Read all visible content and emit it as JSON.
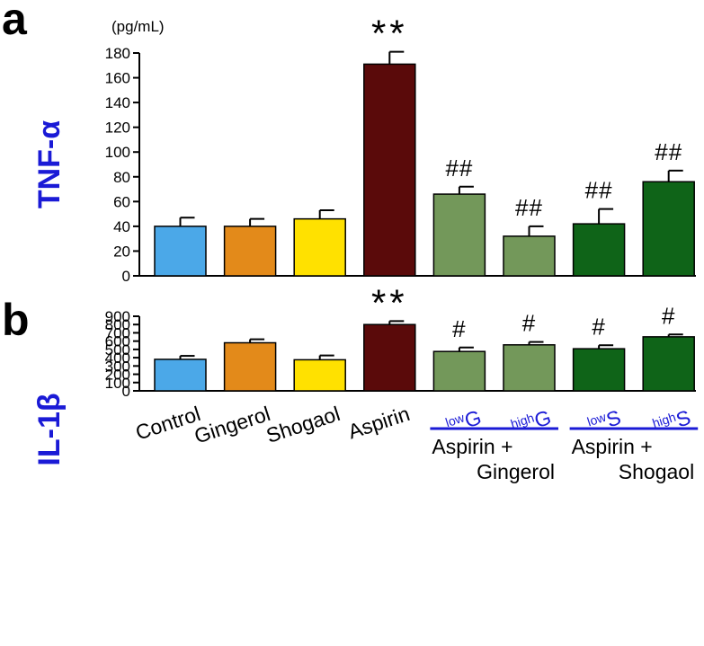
{
  "panels": [
    {
      "letter": "a",
      "unit": "(pg/mL)",
      "ylabel": "TNF-α",
      "ylim": [
        0,
        180
      ],
      "yticks": [
        0,
        20,
        40,
        60,
        80,
        100,
        120,
        140,
        160,
        180
      ],
      "values": [
        40,
        40,
        46,
        171,
        66,
        32,
        42,
        76
      ],
      "errors": [
        7,
        6,
        7,
        10,
        6,
        8,
        12,
        9
      ],
      "marks": [
        "",
        "",
        "",
        "**",
        "##",
        "##",
        "##",
        "##"
      ]
    },
    {
      "letter": "b",
      "unit": "",
      "ylabel": "IL-1β",
      "ylim": [
        0,
        900
      ],
      "yticks": [
        0,
        100,
        200,
        300,
        400,
        500,
        600,
        700,
        800,
        900
      ],
      "values": [
        380,
        580,
        375,
        800,
        475,
        555,
        508,
        652
      ],
      "errors": [
        42,
        42,
        52,
        42,
        48,
        35,
        42,
        28
      ],
      "marks": [
        "",
        "",
        "",
        "**",
        "#",
        "#",
        "#",
        "#"
      ]
    }
  ],
  "bar_colors": [
    "#4ba8e8",
    "#e38a1a",
    "#ffe100",
    "#5a0a0a",
    "#73985a",
    "#73985a",
    "#0f6418",
    "#0f6418"
  ],
  "categories": [
    {
      "text": "Control"
    },
    {
      "text": "Gingerol"
    },
    {
      "text": "Shogaol"
    },
    {
      "text": "Aspirin"
    },
    {
      "sup": "low",
      "main": "G"
    },
    {
      "sup": "high",
      "main": "G"
    },
    {
      "sup": "low",
      "main": "S"
    },
    {
      "sup": "high",
      "main": "S"
    }
  ],
  "groups": [
    {
      "line1": "Aspirin +",
      "line2": "Gingerol"
    },
    {
      "line1": "Aspirin +",
      "line2": "Shogaol"
    }
  ],
  "label_color": "#1a1ad6",
  "chart_data": [
    {
      "type": "bar",
      "title": "",
      "ylabel": "TNF-α",
      "unit": "(pg/mL)",
      "categories": [
        "Control",
        "Gingerol",
        "Shogaol",
        "Aspirin",
        "lowG",
        "highG",
        "lowS",
        "highS"
      ],
      "values": [
        40,
        40,
        46,
        171,
        66,
        32,
        42,
        76
      ],
      "error_bars": [
        7,
        6,
        7,
        10,
        6,
        8,
        12,
        9
      ],
      "annotations": [
        "",
        "",
        "",
        "**",
        "##",
        "##",
        "##",
        "##"
      ],
      "ylim": [
        0,
        180
      ],
      "grid": false,
      "legend": "none"
    },
    {
      "type": "bar",
      "title": "",
      "ylabel": "IL-1β",
      "categories": [
        "Control",
        "Gingerol",
        "Shogaol",
        "Aspirin",
        "lowG",
        "highG",
        "lowS",
        "highS"
      ],
      "values": [
        380,
        580,
        375,
        800,
        475,
        555,
        508,
        652
      ],
      "error_bars": [
        42,
        42,
        52,
        42,
        48,
        35,
        42,
        28
      ],
      "annotations": [
        "",
        "",
        "",
        "**",
        "#",
        "#",
        "#",
        "#"
      ],
      "ylim": [
        0,
        900
      ],
      "grid": false,
      "legend": "none"
    }
  ]
}
